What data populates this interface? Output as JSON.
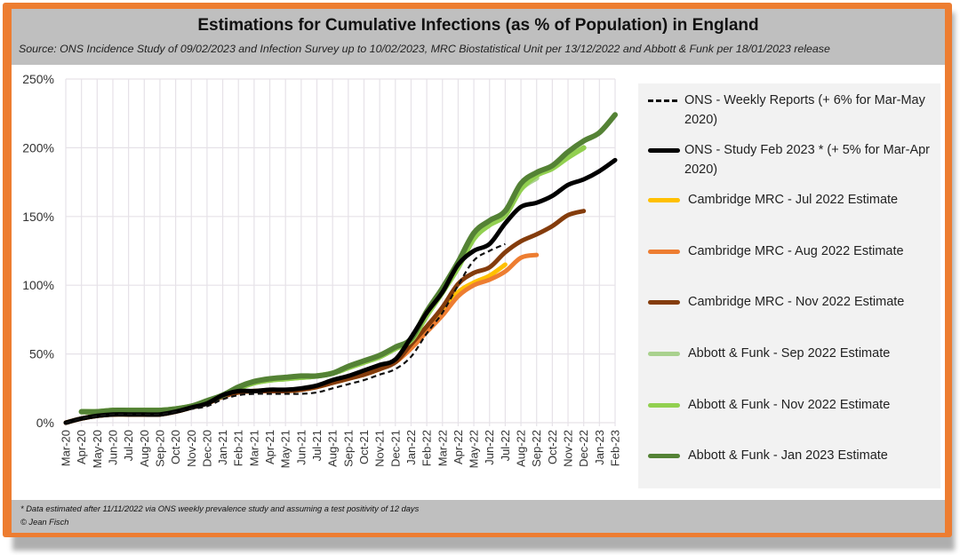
{
  "chart_data": {
    "type": "line",
    "title": "Estimations for Cumulative Infections (as % of Population) in England",
    "subtitle": "Source: ONS Incidence Study of 09/02/2023 and Infection Survey up to 10/02/2023, MRC Biostatistical Unit per 13/12/2022 and Abbott & Funk per 18/01/2023 release",
    "xlabel": "",
    "ylabel": "",
    "ylim": [
      0,
      250
    ],
    "yticks": [
      "0%",
      "50%",
      "100%",
      "150%",
      "200%",
      "250%"
    ],
    "ytick_values": [
      0,
      50,
      100,
      150,
      200,
      250
    ],
    "grid": true,
    "legend_position": "right",
    "categories": [
      "Mar-20",
      "Apr-20",
      "May-20",
      "Jun-20",
      "Jul-20",
      "Aug-20",
      "Sep-20",
      "Oct-20",
      "Nov-20",
      "Dec-20",
      "Jan-21",
      "Feb-21",
      "Mar-21",
      "Apr-21",
      "May-21",
      "Jun-21",
      "Jul-21",
      "Aug-21",
      "Sep-21",
      "Oct-21",
      "Nov-21",
      "Dec-21",
      "Jan-22",
      "Feb-22",
      "Mar-22",
      "Apr-22",
      "May-22",
      "Jun-22",
      "Jul-22",
      "Aug-22",
      "Sep-22",
      "Oct-22",
      "Nov-22",
      "Dec-22",
      "Jan-23",
      "Feb-23"
    ],
    "series": [
      {
        "name": "ONS - Weekly Reports  (+ 6% for Mar-May 2020)",
        "color": "#111111",
        "style": "dashed",
        "start_index": 0,
        "values": [
          0,
          3,
          5,
          6,
          6,
          6,
          6,
          8,
          10,
          12,
          17,
          20,
          21,
          21,
          21,
          21,
          22,
          25,
          28,
          31,
          35,
          39,
          48,
          65,
          80,
          100,
          118,
          125,
          130
        ]
      },
      {
        "name": "ONS - Study Feb 2023 * (+ 5% for Mar-Apr 2020)",
        "color": "#000000",
        "style": "solid",
        "start_index": 0,
        "values": [
          0,
          3,
          5,
          6,
          6,
          6,
          6,
          8,
          11,
          14,
          20,
          23,
          23,
          24,
          24,
          25,
          27,
          31,
          34,
          38,
          42,
          46,
          62,
          80,
          95,
          115,
          125,
          130,
          145,
          157,
          160,
          165,
          173,
          177,
          183,
          191
        ]
      },
      {
        "name": "Cambridge MRC - Jul 2022 Estimate",
        "color": "#ffc000",
        "style": "solid",
        "start_index": 0,
        "values": [
          0,
          3,
          5,
          6,
          6,
          6,
          6,
          8,
          11,
          14,
          19,
          22,
          23,
          23,
          23,
          24,
          26,
          29,
          32,
          35,
          39,
          44,
          55,
          68,
          80,
          95,
          102,
          107,
          115
        ]
      },
      {
        "name": "Cambridge MRC - Aug 2022 Estimate",
        "color": "#ed7d31",
        "style": "solid",
        "start_index": 0,
        "values": [
          0,
          3,
          5,
          6,
          6,
          6,
          6,
          8,
          11,
          14,
          19,
          22,
          23,
          23,
          23,
          24,
          26,
          29,
          32,
          35,
          39,
          44,
          54,
          66,
          78,
          92,
          100,
          104,
          110,
          120,
          122
        ]
      },
      {
        "name": "Cambridge MRC - Nov 2022 Estimate",
        "color": "#843c0c",
        "style": "solid",
        "start_index": 0,
        "values": [
          0,
          3,
          5,
          6,
          6,
          6,
          6,
          8,
          11,
          14,
          19,
          22,
          23,
          23,
          23,
          24,
          26,
          29,
          32,
          35,
          39,
          44,
          57,
          70,
          84,
          101,
          109,
          113,
          124,
          132,
          137,
          143,
          151,
          154
        ]
      },
      {
        "name": "Abbott & Funk - Sep 2022 Estimate",
        "color": "#a9d18e",
        "style": "solid",
        "start_index": 1,
        "values": [
          8,
          8,
          9,
          9,
          9,
          9,
          10,
          12,
          15,
          20,
          25,
          29,
          31,
          32,
          33,
          34,
          36,
          40,
          44,
          48,
          54,
          60,
          78,
          95,
          113,
          134,
          144,
          151,
          170,
          178
        ]
      },
      {
        "name": "Abbott & Funk - Nov 2022 Estimate",
        "color": "#92d050",
        "style": "solid",
        "start_index": 1,
        "values": [
          8,
          8,
          9,
          9,
          9,
          9,
          10,
          12,
          15,
          20,
          25,
          29,
          31,
          32,
          33,
          34,
          36,
          40,
          44,
          48,
          54,
          60,
          78,
          95,
          113,
          134,
          144,
          151,
          170,
          180,
          185,
          193,
          200
        ]
      },
      {
        "name": "Abbott & Funk - Jan 2023 Estimate",
        "color": "#548235",
        "style": "solid",
        "start_index": 1,
        "values": [
          8,
          8,
          9,
          9,
          9,
          9,
          10,
          12,
          16,
          20,
          26,
          30,
          32,
          33,
          34,
          34,
          36,
          41,
          45,
          49,
          55,
          61,
          81,
          98,
          117,
          138,
          147,
          154,
          174,
          182,
          187,
          197,
          205,
          211,
          224
        ]
      }
    ]
  },
  "header": {
    "title": "Estimations for Cumulative Infections (as % of Population) in England",
    "subtitle": "Source: ONS Incidence Study of 09/02/2023 and Infection Survey up to 10/02/2023, MRC Biostatistical Unit per 13/12/2022 and Abbott & Funk per 18/01/2023 release"
  },
  "legend": {
    "items": [
      {
        "label": "ONS - Weekly Reports  (+ 6% for Mar-May 2020)",
        "color": "#111111",
        "style": "dashed"
      },
      {
        "label": "ONS - Study Feb 2023 * (+ 5% for Mar-Apr 2020)",
        "color": "#000000",
        "style": "solid"
      },
      {
        "label": "Cambridge MRC - Jul 2022 Estimate",
        "color": "#ffc000",
        "style": "solid"
      },
      {
        "label": "Cambridge MRC - Aug 2022 Estimate",
        "color": "#ed7d31",
        "style": "solid"
      },
      {
        "label": "Cambridge MRC - Nov 2022 Estimate",
        "color": "#843c0c",
        "style": "solid"
      },
      {
        "label": "Abbott & Funk - Sep 2022 Estimate",
        "color": "#a9d18e",
        "style": "solid"
      },
      {
        "label": "Abbott & Funk - Nov 2022 Estimate",
        "color": "#92d050",
        "style": "solid"
      },
      {
        "label": "Abbott & Funk - Jan 2023 Estimate",
        "color": "#548235",
        "style": "solid"
      }
    ]
  },
  "footer": {
    "footnote": "* Data estimated after 11/11/2022 via ONS weekly prevalence study and assuming a test positivity of 12 days",
    "credit": "© Jean Fisch"
  },
  "colors": {
    "frame": "#ed7d31",
    "header_bg": "#bfbfbf",
    "legend_bg": "#f2f2f2",
    "grid": "#e6e2e8"
  }
}
